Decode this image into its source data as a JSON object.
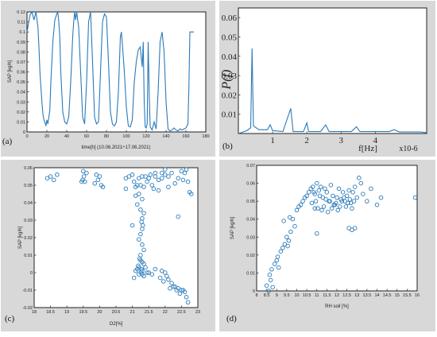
{
  "panels": {
    "a": {
      "letter": "(a)",
      "ylabel": "SAP [kg/h]",
      "xlabel": "time[h]  (10.06.2021÷17.06.2021)"
    },
    "b": {
      "letter": "(b)",
      "ylabel": "P(f)",
      "xlabel": "f[Hz]",
      "xscale": "x10-6"
    },
    "c": {
      "letter": "(c)",
      "ylabel": "SAP [kg/h]",
      "xlabel": "O2[%]"
    },
    "d": {
      "letter": "(d)",
      "ylabel": "SAP [kg/h]",
      "xlabel": "RH soil [%]"
    }
  },
  "colors": {
    "series": "#2a7ab9",
    "frame": "#222222",
    "bg": "#d8d8d8",
    "plot_bg": "#ffffff"
  },
  "chart_data": [
    {
      "id": "a",
      "type": "line",
      "xlabel": "time[h]  (10.06.2021÷17.06.2021)",
      "ylabel": "SAP [kg/h]",
      "xlim": [
        0,
        180
      ],
      "ylim": [
        0,
        0.12
      ],
      "xticks": [
        0,
        20,
        40,
        60,
        80,
        100,
        120,
        140,
        160,
        180
      ],
      "yticks": [
        0,
        0.01,
        0.02,
        0.03,
        0.04,
        0.05,
        0.06,
        0.07,
        0.08,
        0.09,
        0.1,
        0.11,
        0.12
      ],
      "ytick_labels": [
        "0",
        "0.01",
        "0.02",
        "0.03",
        "0.04",
        "0.05",
        "0.06",
        "0.07",
        "0.08",
        "0.09",
        "0.1",
        "0.11",
        "0.12"
      ],
      "grid": false,
      "x": [
        0,
        3,
        5,
        7,
        9,
        11,
        12,
        13,
        14,
        15,
        16,
        17,
        18,
        19,
        20,
        21,
        22,
        23,
        24,
        26,
        28,
        30,
        31,
        32,
        33,
        34,
        36,
        38,
        40,
        42,
        44,
        46,
        47,
        48,
        49,
        50,
        52,
        54,
        56,
        58,
        60,
        62,
        64,
        66,
        68,
        70,
        72,
        74,
        76,
        78,
        80,
        82,
        84,
        86,
        88,
        90,
        92,
        94,
        95,
        96,
        98,
        100,
        102,
        104,
        106,
        108,
        110,
        112,
        114,
        116,
        117,
        118,
        119,
        120,
        121,
        122,
        123,
        124,
        126,
        128,
        130,
        132,
        134,
        136,
        138,
        140,
        142,
        144,
        146,
        148,
        150,
        152,
        154,
        156,
        158,
        160,
        162,
        163,
        164,
        165,
        166,
        168
      ],
      "y": [
        0.1,
        0.117,
        0.12,
        0.112,
        0.12,
        0.105,
        0.085,
        0.06,
        0.045,
        0.03,
        0.018,
        0.012,
        0.01,
        0.006,
        0.012,
        0.008,
        0.015,
        0.022,
        0.05,
        0.09,
        0.112,
        0.118,
        0.12,
        0.11,
        0.095,
        0.06,
        0.02,
        0.01,
        0.008,
        0.015,
        0.05,
        0.095,
        0.11,
        0.12,
        0.112,
        0.12,
        0.105,
        0.06,
        0.015,
        0.008,
        0.05,
        0.11,
        0.12,
        0.07,
        0.015,
        0.008,
        0.01,
        0.06,
        0.11,
        0.118,
        0.115,
        0.07,
        0.02,
        0.008,
        0.006,
        0.01,
        0.04,
        0.095,
        0.1,
        0.088,
        0.06,
        0.025,
        0.006,
        0.005,
        0.012,
        0.05,
        0.07,
        0.082,
        0.085,
        0.065,
        0.09,
        0.03,
        0.005,
        0.004,
        0.008,
        0.09,
        0.04,
        0.005,
        0.002,
        0.01,
        0.003,
        0.04,
        0.09,
        0.1,
        0.08,
        0.03,
        0.003,
        0.001,
        0.002,
        0.004,
        0.002,
        0.001,
        0.003,
        0.002,
        0.003,
        0.004,
        0.008,
        0.045,
        0.1,
        0.1,
        0.1,
        0.1
      ]
    },
    {
      "id": "b",
      "type": "line",
      "xlabel": "f[Hz]",
      "ylabel": "P(f)",
      "x_scale_label": "x10-6",
      "xlim": [
        0,
        5.5
      ],
      "ylim": [
        0,
        0.065
      ],
      "xticks": [
        1,
        2,
        3,
        4
      ],
      "yticks": [
        0.01,
        0.02,
        0.03,
        0.04,
        0.05,
        0.06
      ],
      "grid": false,
      "x": [
        0.0,
        0.25,
        0.36,
        0.4,
        0.44,
        0.6,
        0.85,
        0.93,
        1.0,
        1.3,
        1.53,
        1.6,
        1.9,
        2.0,
        2.05,
        2.4,
        2.55,
        2.65,
        3.0,
        3.3,
        3.45,
        3.55,
        4.0,
        4.4,
        4.55,
        4.7,
        5.0,
        5.3,
        5.5
      ],
      "y": [
        0.0,
        0.0015,
        0.003,
        0.044,
        0.004,
        0.002,
        0.002,
        0.0045,
        0.0015,
        0.001,
        0.013,
        0.001,
        0.001,
        0.0055,
        0.001,
        0.001,
        0.0045,
        0.001,
        0.001,
        0.001,
        0.0035,
        0.001,
        0.001,
        0.001,
        0.002,
        0.0008,
        0.0008,
        0.0008,
        0.0005
      ]
    },
    {
      "id": "c",
      "type": "scatter",
      "xlabel": "O2[%]",
      "ylabel": "SAP [kg/h]",
      "xlim": [
        18,
        23
      ],
      "ylim": [
        -0.02,
        0.06
      ],
      "xticks": [
        18,
        18.5,
        19,
        19.5,
        20,
        20.5,
        21,
        21.5,
        22,
        22.5,
        23
      ],
      "xtick_labels": [
        "18",
        "18.5",
        "19",
        "19.5",
        "20",
        "20.5",
        "21",
        "21.5",
        "22",
        "22.5",
        "23"
      ],
      "yticks": [
        -0.02,
        -0.01,
        0,
        0.01,
        0.02,
        0.03,
        0.04,
        0.05,
        0.06
      ],
      "ytick_labels": [
        "-0.02",
        "-0.01",
        "0",
        "0.01",
        "0.02",
        "0.03",
        "0.04",
        "0.05",
        "0.06"
      ],
      "grid": false,
      "x": [
        18.4,
        18.5,
        18.6,
        18.7,
        19.5,
        19.52,
        19.55,
        19.48,
        19.6,
        19.45,
        19.9,
        19.85,
        20.0,
        20.05,
        19.95,
        20.1,
        20.8,
        20.9,
        21.0,
        21.05,
        21.1,
        21.15,
        21.2,
        21.25,
        21.3,
        21.35,
        21.4,
        21.45,
        21.5,
        21.55,
        21.6,
        21.65,
        21.7,
        21.8,
        21.9,
        22.0,
        22.1,
        22.2,
        22.3,
        22.4,
        22.5,
        22.55,
        22.6,
        22.65,
        22.7,
        22.75,
        22.1,
        21.9,
        21.8,
        22.0,
        21.7,
        21.1,
        21.2,
        21.3,
        21.15,
        21.25,
        21.35,
        21.3,
        21.28,
        21.32,
        21.3,
        21.25,
        21.2,
        21.3,
        21.35,
        21.25,
        21.22,
        21.3,
        21.18,
        21.28,
        21.26,
        21.2,
        21.3,
        21.4,
        21.35,
        21.25,
        21.2,
        21.1,
        21.3,
        21.5,
        21.7,
        21.9,
        22.0,
        22.05,
        22.1,
        22.2,
        22.3,
        22.4,
        22.5,
        22.55,
        22.6,
        22.45,
        22.35,
        22.25,
        22.15,
        21.95,
        21.85,
        21.6,
        21.45,
        21.35,
        21.15,
        21.05,
        22.65,
        22.7,
        21.0,
        20.8,
        22.4,
        22.8
      ],
      "y": [
        0.054,
        0.055,
        0.053,
        0.056,
        0.058,
        0.055,
        0.052,
        0.053,
        0.057,
        0.052,
        0.056,
        0.051,
        0.055,
        0.05,
        0.053,
        0.049,
        0.054,
        0.055,
        0.056,
        0.052,
        0.049,
        0.05,
        0.054,
        0.05,
        0.055,
        0.049,
        0.055,
        0.052,
        0.054,
        0.056,
        0.05,
        0.048,
        0.055,
        0.047,
        0.057,
        0.059,
        0.055,
        0.057,
        0.051,
        0.054,
        0.058,
        0.053,
        0.057,
        0.059,
        0.052,
        0.046,
        0.049,
        0.054,
        0.053,
        0.056,
        0.057,
        0.044,
        0.045,
        0.042,
        0.039,
        0.036,
        0.034,
        0.031,
        0.029,
        0.027,
        0.025,
        0.022,
        0.019,
        0.016,
        0.013,
        0.01,
        0.008,
        0.006,
        0.004,
        0.002,
        0.0,
        -0.001,
        0.001,
        0.003,
        0.005,
        0.007,
        0.003,
        0.001,
        -0.001,
        0.0,
        0.002,
        0.001,
        0.0,
        -0.002,
        -0.004,
        -0.006,
        -0.008,
        -0.009,
        -0.01,
        -0.01,
        -0.011,
        -0.012,
        -0.01,
        -0.008,
        -0.009,
        -0.005,
        -0.003,
        -0.001,
        0.0,
        -0.002,
        0.002,
        -0.003,
        -0.014,
        -0.017,
        0.027,
        0.048,
        0.032,
        0.045
      ]
    },
    {
      "id": "d",
      "type": "scatter",
      "xlabel": "RH soil [%]",
      "ylabel": "SAP [kg/h]",
      "xlim": [
        8,
        16
      ],
      "ylim": [
        0,
        0.07
      ],
      "xticks": [
        8,
        8.5,
        9,
        9.5,
        10,
        10.5,
        11,
        11.5,
        12,
        12.5,
        13,
        13.5,
        14,
        14.5,
        15,
        15.5,
        16
      ],
      "xtick_labels": [
        "8",
        "8.5",
        "9",
        "9.5",
        "10",
        "10.5",
        "11",
        "11.5",
        "12",
        "12.5",
        "13",
        "13.5",
        "14",
        "14.5",
        "15",
        "15.5",
        "16"
      ],
      "yticks": [
        0,
        0.01,
        0.02,
        0.03,
        0.04,
        0.05,
        0.06,
        0.07
      ],
      "ytick_labels": [
        "0",
        "0.01",
        "0.02",
        "0.03",
        "0.04",
        "0.05",
        "0.06",
        "0.07"
      ],
      "grid": false,
      "x": [
        8.5,
        8.6,
        8.7,
        8.8,
        8.65,
        8.75,
        8.9,
        9.0,
        9.1,
        9.2,
        9.05,
        9.3,
        9.4,
        9.5,
        9.6,
        9.7,
        9.55,
        9.8,
        9.9,
        10.0,
        10.1,
        10.2,
        10.3,
        10.4,
        10.5,
        10.6,
        10.7,
        10.8,
        10.9,
        11.0,
        11.1,
        11.2,
        11.3,
        11.4,
        11.5,
        11.6,
        11.7,
        11.8,
        11.9,
        12.0,
        12.1,
        12.2,
        12.3,
        12.4,
        12.5,
        12.6,
        12.7,
        12.8,
        12.9,
        13.0,
        13.1,
        13.2,
        13.3,
        13.5,
        13.7,
        14.0,
        14.2,
        10.95,
        11.05,
        11.15,
        11.25,
        10.85,
        10.75,
        11.35,
        11.45,
        11.55,
        11.65,
        11.75,
        11.85,
        11.95,
        12.05,
        12.15,
        12.25,
        12.35,
        12.45,
        12.55,
        12.65,
        12.75,
        12.85,
        12.6,
        12.75,
        12.9,
        11.0,
        10.9,
        9.35,
        9.65,
        15.9
      ],
      "y": [
        0.003,
        0.0,
        0.006,
        0.002,
        0.009,
        0.012,
        0.015,
        0.017,
        0.013,
        0.022,
        0.019,
        0.024,
        0.026,
        0.03,
        0.028,
        0.033,
        0.025,
        0.04,
        0.036,
        0.045,
        0.047,
        0.048,
        0.05,
        0.052,
        0.053,
        0.055,
        0.057,
        0.058,
        0.054,
        0.06,
        0.056,
        0.058,
        0.052,
        0.057,
        0.055,
        0.05,
        0.059,
        0.053,
        0.048,
        0.052,
        0.057,
        0.051,
        0.055,
        0.05,
        0.053,
        0.056,
        0.049,
        0.055,
        0.058,
        0.052,
        0.063,
        0.06,
        0.054,
        0.05,
        0.057,
        0.048,
        0.052,
        0.05,
        0.046,
        0.053,
        0.045,
        0.055,
        0.049,
        0.047,
        0.051,
        0.044,
        0.05,
        0.046,
        0.048,
        0.049,
        0.045,
        0.047,
        0.05,
        0.052,
        0.047,
        0.049,
        0.051,
        0.046,
        0.05,
        0.035,
        0.034,
        0.035,
        0.032,
        0.046,
        0.039,
        0.041,
        0.052
      ]
    }
  ]
}
